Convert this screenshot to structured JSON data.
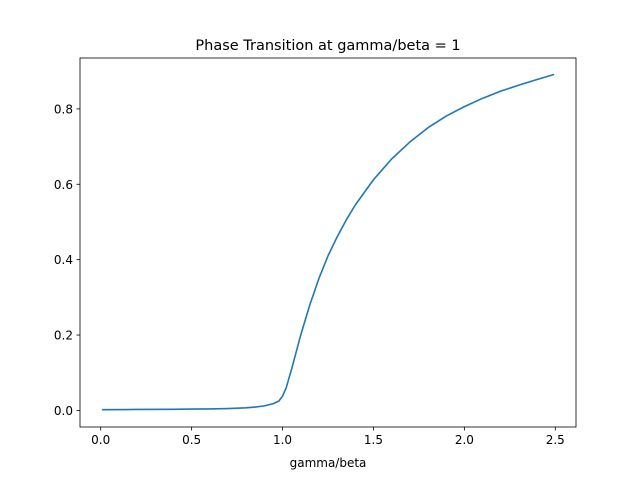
{
  "chart_data": {
    "type": "line",
    "title": "Phase Transition at gamma/beta = 1",
    "xlabel": "gamma/beta",
    "ylabel": "",
    "xlim": [
      -0.114,
      2.614
    ],
    "ylim": [
      -0.044,
      0.935
    ],
    "xticks": [
      0.0,
      0.5,
      1.0,
      1.5,
      2.0,
      2.5
    ],
    "xtick_labels": [
      "0.0",
      "0.5",
      "1.0",
      "1.5",
      "2.0",
      "2.5"
    ],
    "yticks": [
      0.0,
      0.2,
      0.4,
      0.6,
      0.8
    ],
    "ytick_labels": [
      "0.0",
      "0.2",
      "0.4",
      "0.6",
      "0.8"
    ],
    "grid": false,
    "legend": "none",
    "series": [
      {
        "color": "#1f77b4",
        "x": [
          0.01,
          0.2,
          0.4,
          0.5,
          0.6,
          0.7,
          0.8,
          0.85,
          0.9,
          0.95,
          0.98,
          1.0,
          1.02,
          1.05,
          1.1,
          1.15,
          1.2,
          1.25,
          1.3,
          1.35,
          1.4,
          1.5,
          1.6,
          1.7,
          1.8,
          1.9,
          2.0,
          2.1,
          2.2,
          2.3,
          2.4,
          2.49
        ],
        "y": [
          0.002,
          0.0025,
          0.003,
          0.0035,
          0.004,
          0.005,
          0.007,
          0.009,
          0.012,
          0.018,
          0.025,
          0.038,
          0.06,
          0.11,
          0.2,
          0.28,
          0.35,
          0.41,
          0.46,
          0.505,
          0.545,
          0.612,
          0.667,
          0.712,
          0.75,
          0.781,
          0.806,
          0.828,
          0.847,
          0.863,
          0.878,
          0.891
        ]
      }
    ]
  }
}
